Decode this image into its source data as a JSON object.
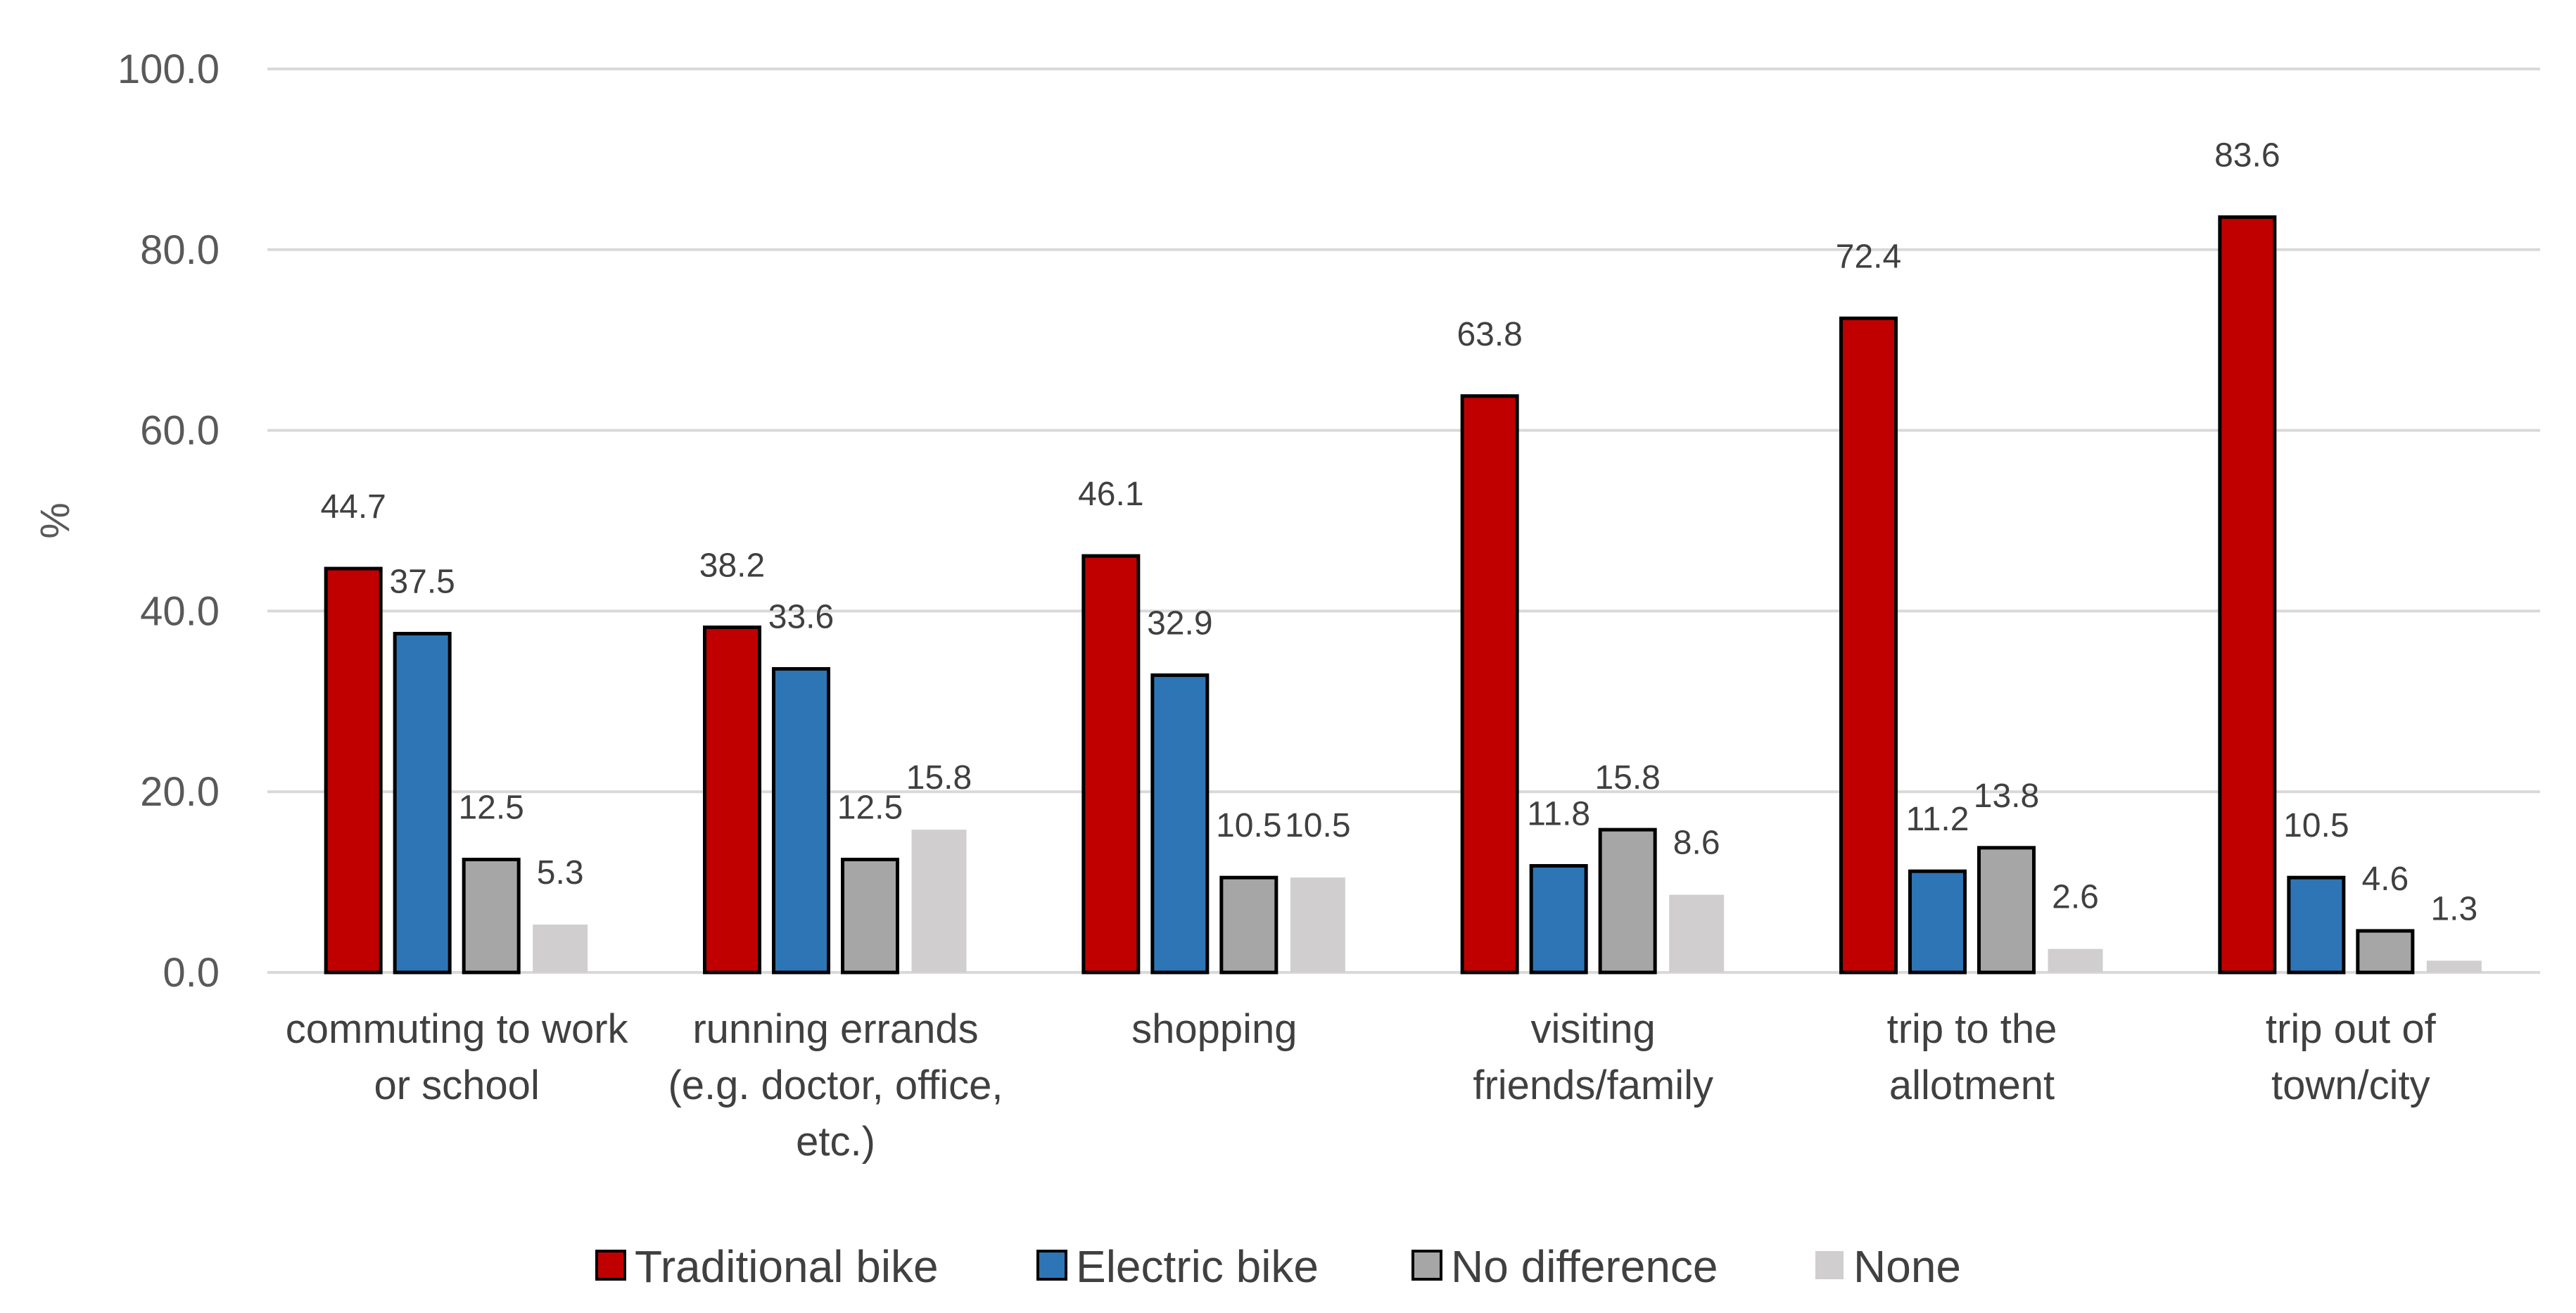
{
  "chart_data": {
    "type": "bar",
    "title": "",
    "xlabel": "",
    "ylabel": "%",
    "ylim": [
      0,
      100
    ],
    "yticks": [
      "0.0",
      "20.0",
      "40.0",
      "60.0",
      "80.0",
      "100.0"
    ],
    "grid": true,
    "legend_position": "bottom",
    "categories": [
      [
        "commuting to work",
        "or school"
      ],
      [
        "running errands",
        "(e.g. doctor, office,",
        "etc.)"
      ],
      [
        "shopping"
      ],
      [
        "visiting",
        "friends/family"
      ],
      [
        "trip to the",
        "allotment"
      ],
      [
        "trip out of",
        "town/city"
      ]
    ],
    "series": [
      {
        "name": "Traditional bike",
        "color": "#C00000",
        "outline": true,
        "values": [
          44.7,
          38.2,
          46.1,
          63.8,
          72.4,
          83.6
        ],
        "labels": [
          "44.7",
          "38.2",
          "46.1",
          "63.8",
          "72.4",
          "83.6"
        ]
      },
      {
        "name": "Electric bike",
        "color": "#2E75B6",
        "outline": true,
        "values": [
          37.5,
          33.6,
          32.9,
          11.8,
          11.2,
          10.5
        ],
        "labels": [
          "37.5",
          "33.6",
          "32.9",
          "11.8",
          "11.2",
          "10.5"
        ]
      },
      {
        "name": "No difference",
        "color": "#A6A6A6",
        "outline": true,
        "values": [
          12.5,
          12.5,
          10.5,
          15.8,
          13.8,
          4.6
        ],
        "labels": [
          "12.5",
          "12.5",
          "10.5",
          "15.8",
          "13.8",
          "4.6"
        ]
      },
      {
        "name": "None",
        "color": "#D0CECE",
        "outline": false,
        "values": [
          5.3,
          15.8,
          10.5,
          8.6,
          2.6,
          1.3
        ],
        "labels": [
          "5.3",
          "15.8",
          "10.5",
          "8.6",
          "2.6",
          "1.3"
        ]
      }
    ]
  }
}
